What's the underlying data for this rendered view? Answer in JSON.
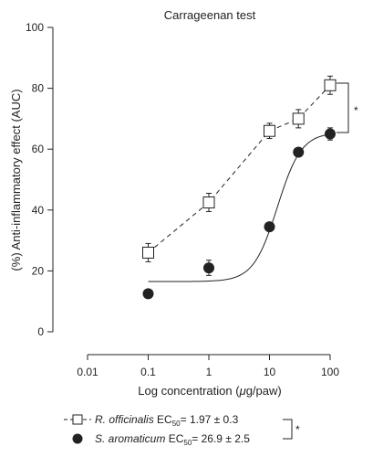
{
  "chart_data": {
    "type": "scatter",
    "title": "Carrageenan test",
    "xlabel_prefix": "Log concentration (",
    "xlabel_unit_greek": "μ",
    "xlabel_suffix": "g/paw)",
    "ylabel": "(%) Anti-inflammatory effect (AUC)",
    "xscale": "log",
    "xlim": [
      0.01,
      100
    ],
    "ylim": [
      0,
      100
    ],
    "xticks": [
      0.01,
      0.1,
      1,
      10,
      100
    ],
    "xtick_labels": [
      "0.01",
      "0.1",
      "1",
      "10",
      "100"
    ],
    "yticks": [
      0,
      20,
      40,
      60,
      80,
      100
    ],
    "ytick_labels": [
      "0",
      "20",
      "40",
      "60",
      "80",
      "100"
    ],
    "grid": false,
    "legend_position": "bottom-left",
    "series": [
      {
        "name": "R. officinalis",
        "ec50_prefix": "EC",
        "ec50_sub": "50",
        "ec50_value": "= 1.97 ± 0.3",
        "marker": "open-square",
        "line": "dashed",
        "color": "#222222",
        "x": [
          0.1,
          1,
          10,
          30,
          100
        ],
        "y": [
          26,
          42.5,
          66,
          70,
          81
        ],
        "err": [
          3,
          3,
          2.5,
          3,
          3
        ]
      },
      {
        "name": "S. aromaticum",
        "ec50_prefix": "EC",
        "ec50_sub": "50",
        "ec50_value": "= 26.9 ± 2.5",
        "marker": "filled-circle",
        "line": "solid",
        "color": "#222222",
        "x": [
          0.1,
          1,
          10,
          30,
          100
        ],
        "y": [
          12.5,
          21,
          34.5,
          59,
          65
        ],
        "err": [
          0,
          2.5,
          1,
          1,
          2
        ]
      }
    ],
    "annotations": {
      "significance_right": "*",
      "significance_legend": "*"
    }
  }
}
